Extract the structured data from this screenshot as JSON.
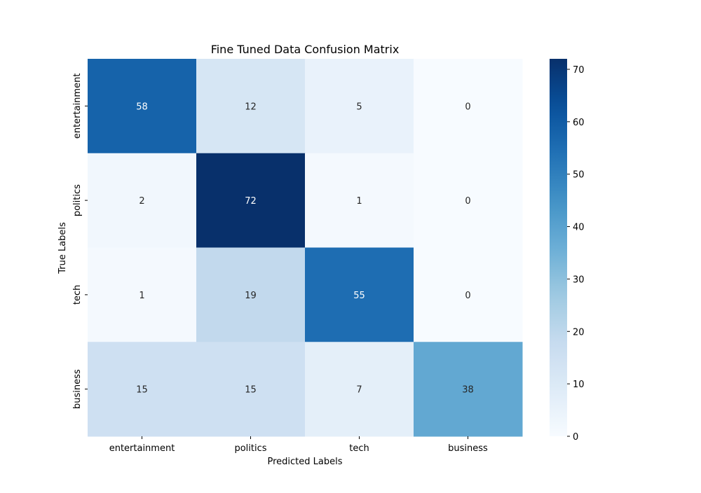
{
  "chart_data": {
    "type": "heatmap",
    "title": "Fine Tuned Data Confusion Matrix",
    "xlabel": "Predicted Labels",
    "ylabel": "True Labels",
    "x_categories": [
      "entertainment",
      "politics",
      "tech",
      "business"
    ],
    "y_categories": [
      "entertainment",
      "politics",
      "tech",
      "business"
    ],
    "values": [
      [
        58,
        12,
        5,
        0
      ],
      [
        2,
        72,
        1,
        0
      ],
      [
        1,
        19,
        55,
        0
      ],
      [
        15,
        15,
        7,
        38
      ]
    ],
    "colormap": "Blues",
    "colorbar": {
      "range": [
        0,
        72
      ],
      "ticks": [
        0,
        10,
        20,
        30,
        40,
        50,
        60,
        70
      ]
    }
  }
}
